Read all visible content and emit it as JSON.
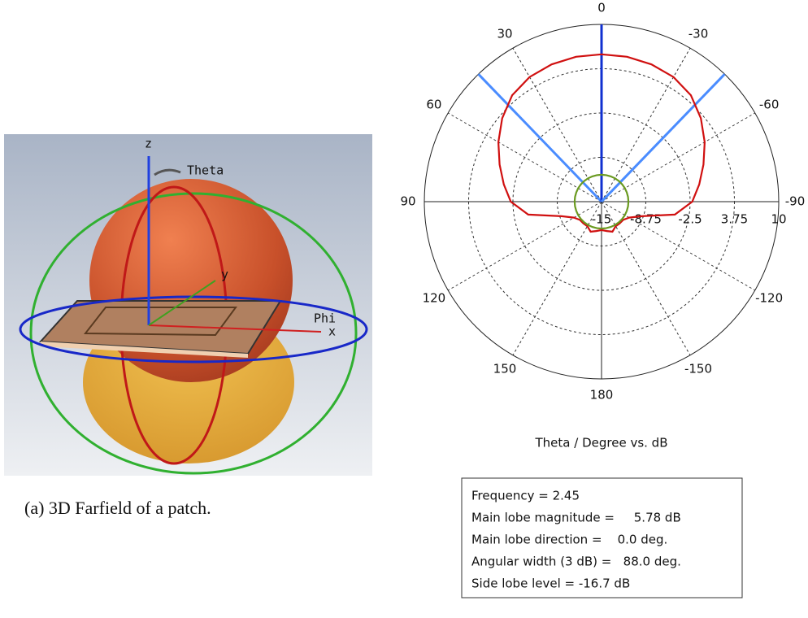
{
  "left_panel": {
    "labels": {
      "z": "z",
      "theta": "Theta",
      "y": "y",
      "phi": "Phi",
      "x": "x"
    },
    "caption": "(a) 3D Farfield of a patch."
  },
  "chart_data": {
    "type": "polar",
    "x": [
      -180,
      -170,
      -160,
      -150,
      -140,
      -130,
      -120,
      -110,
      -100,
      -90,
      -80,
      -70,
      -60,
      -50,
      -40,
      -30,
      -20,
      -10,
      0,
      10,
      20,
      30,
      40,
      50,
      60,
      70,
      80,
      90,
      100,
      110,
      120,
      130,
      140,
      150,
      160,
      170,
      180
    ],
    "series": [
      {
        "color": "#d01010",
        "values": [
          -11,
          -10.8,
          -10.5,
          -11,
          -11,
          -11,
          -10.5,
          -9,
          -4.5,
          -2.2,
          -1,
          0.3,
          1.8,
          3.3,
          4.6,
          5.3,
          5.6,
          5.75,
          5.78,
          5.75,
          5.6,
          5.3,
          4.6,
          3.3,
          1.8,
          0.3,
          -1,
          -2.2,
          -4.5,
          -9,
          -10.5,
          -11,
          -11,
          -11,
          -10.5,
          -10.8,
          -11
        ]
      },
      {
        "color": "#6a9a20",
        "values": [
          -11.2,
          -11.2,
          -11.2,
          -11.2,
          -11.2,
          -11.2,
          -11.2,
          -11.2,
          -11.2,
          -11.2,
          -11.2,
          -11.2,
          -11.2,
          -11.2,
          -11.2,
          -11.2,
          -11.2,
          -11.2,
          -11.2,
          -11.2,
          -11.2,
          -11.2,
          -11.2,
          -11.2,
          -11.2,
          -11.2,
          -11.2,
          -11.2,
          -11.2,
          -11.2,
          -11.2,
          -11.2,
          -11.2,
          -11.2,
          -11.2,
          -11.2,
          -11.2
        ]
      }
    ],
    "beam_lines": [
      {
        "theta": 44,
        "color": "#4a8cff"
      },
      {
        "theta": 0,
        "color": "#1030d0"
      },
      {
        "theta": -44,
        "color": "#4a8cff"
      }
    ],
    "rlim": [
      -15,
      10
    ],
    "rticks": [
      -15,
      -8.75,
      -2.5,
      3.75,
      10
    ],
    "thetaticks": [
      0,
      30,
      60,
      90,
      120,
      150,
      180,
      -150,
      -120,
      -90,
      -60,
      -30
    ],
    "xlabel": "Theta / Degree vs. dB",
    "info_box": [
      "Frequency = 2.45",
      "Main lobe magnitude =     5.78 dB",
      "Main lobe direction =    0.0 deg.",
      "Angular width (3 dB) =   88.0 deg.",
      "Side lobe level = -16.7 dB"
    ]
  }
}
